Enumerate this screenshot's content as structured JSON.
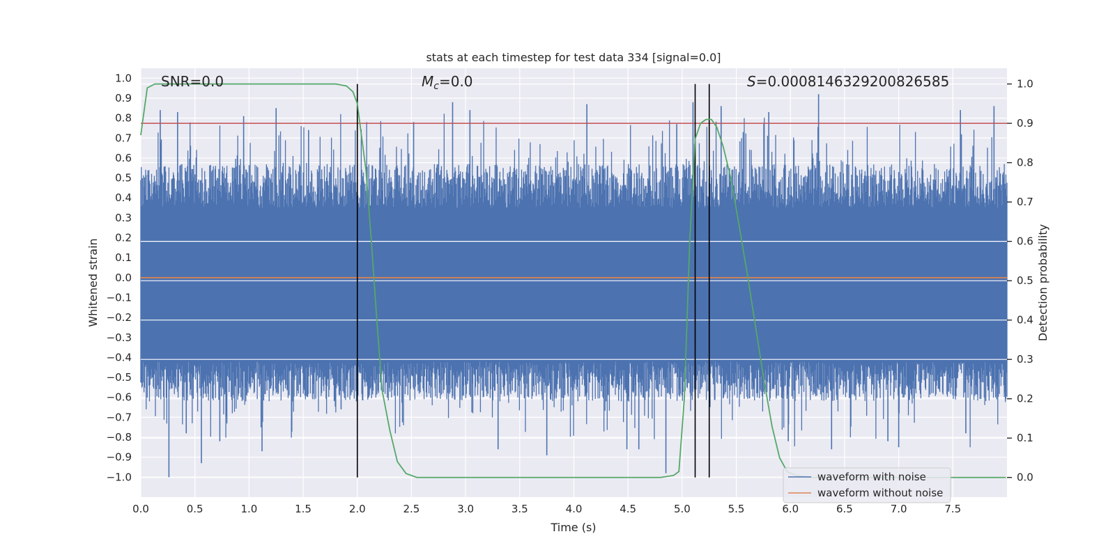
{
  "chart_data": {
    "type": "line",
    "title": "stats at each timestep for test data 334 [signal=0.0]",
    "xlabel": "Time (s)",
    "ylabel": "Whitened strain",
    "y2label": "Detection probability",
    "xlim": [
      0.0,
      8.0
    ],
    "ylim": [
      -1.1,
      1.05
    ],
    "y2lim": [
      -0.05,
      1.04
    ],
    "xticks": [
      "0.0",
      "0.5",
      "1.0",
      "1.5",
      "2.0",
      "2.5",
      "3.0",
      "3.5",
      "4.0",
      "4.5",
      "5.0",
      "5.5",
      "6.0",
      "6.5",
      "7.0",
      "7.5"
    ],
    "xtick_values": [
      0.0,
      0.5,
      1.0,
      1.5,
      2.0,
      2.5,
      3.0,
      3.5,
      4.0,
      4.5,
      5.0,
      5.5,
      6.0,
      6.5,
      7.0,
      7.5
    ],
    "yticks": [
      "1.0",
      "0.9",
      "0.8",
      "0.7",
      "0.6",
      "0.5",
      "0.4",
      "0.3",
      "0.2",
      "0.1",
      "0.0",
      "−0.1",
      "−0.2",
      "−0.3",
      "−0.4",
      "−0.5",
      "−0.6",
      "−0.7",
      "−0.8",
      "−0.9",
      "−1.0"
    ],
    "ytick_values": [
      1.0,
      0.9,
      0.8,
      0.7,
      0.6,
      0.5,
      0.4,
      0.3,
      0.2,
      0.1,
      0.0,
      -0.1,
      -0.2,
      -0.3,
      -0.4,
      -0.5,
      -0.6,
      -0.7,
      -0.8,
      -0.9,
      -1.0
    ],
    "y2ticks": [
      "1.0",
      "0.9",
      "0.8",
      "0.7",
      "0.6",
      "0.5",
      "0.4",
      "0.3",
      "0.2",
      "0.1",
      "0.0"
    ],
    "y2tick_values": [
      1.0,
      0.9,
      0.8,
      0.7,
      0.6,
      0.5,
      0.4,
      0.3,
      0.2,
      0.1,
      0.0
    ],
    "annotations": {
      "snr": "SNR=0.0",
      "mc_symbol": "M",
      "mc_sub": "c",
      "mc_value": "=0.0",
      "s_symbol": "S",
      "s_value": "=0.0008146329200826585"
    },
    "legend": {
      "placement": "bottom-right",
      "entries": [
        {
          "label": "waveform with noise",
          "color": "#4c72b0"
        },
        {
          "label": "waveform without noise",
          "color": "#dd8452"
        }
      ]
    },
    "noise_series": {
      "name": "waveform with noise",
      "color": "#4c72b0",
      "t_start": 0.0,
      "t_end": 8.0,
      "band_upper": 0.35,
      "band_lower": -0.42,
      "spikes": [
        {
          "t": 0.26,
          "v": -1.0
        },
        {
          "t": 0.56,
          "v": -0.93
        },
        {
          "t": 0.73,
          "v": -0.82
        },
        {
          "t": 0.95,
          "v": 0.81
        },
        {
          "t": 1.12,
          "v": -0.87
        },
        {
          "t": 1.25,
          "v": 0.85
        },
        {
          "t": 2.88,
          "v": 0.88
        },
        {
          "t": 3.04,
          "v": 0.84
        },
        {
          "t": 3.75,
          "v": -0.89
        },
        {
          "t": 4.12,
          "v": 0.87
        },
        {
          "t": 4.85,
          "v": -0.98
        },
        {
          "t": 5.1,
          "v": 0.88
        },
        {
          "t": 6.26,
          "v": 0.92
        },
        {
          "t": 7.57,
          "v": 0.84
        },
        {
          "t": 7.88,
          "v": 0.86
        },
        {
          "t": 7.0,
          "v": -0.85
        },
        {
          "t": 6.38,
          "v": -0.86
        },
        {
          "t": 5.98,
          "v": -0.82
        },
        {
          "t": 0.18,
          "v": 0.84
        },
        {
          "t": 0.34,
          "v": 0.83
        },
        {
          "t": 0.42,
          "v": -0.78
        },
        {
          "t": 1.55,
          "v": 0.74
        },
        {
          "t": 1.85,
          "v": -0.66
        },
        {
          "t": 2.52,
          "v": 0.78
        },
        {
          "t": 3.3,
          "v": -0.86
        },
        {
          "t": 4.49,
          "v": -0.86
        },
        {
          "t": 4.6,
          "v": -0.86
        },
        {
          "t": 5.36,
          "v": 0.86
        },
        {
          "t": 5.8,
          "v": 0.83
        },
        {
          "t": 6.9,
          "v": -0.82
        },
        {
          "t": 7.62,
          "v": -0.78
        },
        {
          "t": 4.95,
          "v": 0.77
        }
      ]
    },
    "clean_series": {
      "name": "waveform without noise",
      "color": "#dd8452",
      "value": 0.0
    },
    "threshold": {
      "value": 0.9,
      "axis": "y2",
      "color": "#c44e52"
    },
    "vlines": [
      2.0,
      5.12,
      5.25
    ],
    "probability_series": {
      "color": "#55a868",
      "points": [
        [
          0.0,
          0.87
        ],
        [
          0.06,
          0.99
        ],
        [
          0.13,
          1.0
        ],
        [
          0.5,
          1.0
        ],
        [
          1.0,
          1.0
        ],
        [
          1.5,
          1.0
        ],
        [
          1.8,
          1.0
        ],
        [
          1.9,
          0.995
        ],
        [
          1.96,
          0.98
        ],
        [
          2.0,
          0.95
        ],
        [
          2.08,
          0.78
        ],
        [
          2.13,
          0.6
        ],
        [
          2.18,
          0.4
        ],
        [
          2.23,
          0.22
        ],
        [
          2.3,
          0.12
        ],
        [
          2.37,
          0.04
        ],
        [
          2.45,
          0.01
        ],
        [
          2.55,
          0.0
        ],
        [
          3.0,
          0.0
        ],
        [
          3.5,
          0.0
        ],
        [
          4.0,
          0.0
        ],
        [
          4.5,
          0.0
        ],
        [
          4.8,
          0.0
        ],
        [
          4.92,
          0.005
        ],
        [
          4.97,
          0.015
        ],
        [
          5.02,
          0.2
        ],
        [
          5.07,
          0.6
        ],
        [
          5.12,
          0.86
        ],
        [
          5.17,
          0.9
        ],
        [
          5.22,
          0.91
        ],
        [
          5.27,
          0.91
        ],
        [
          5.32,
          0.89
        ],
        [
          5.38,
          0.84
        ],
        [
          5.45,
          0.76
        ],
        [
          5.52,
          0.65
        ],
        [
          5.6,
          0.52
        ],
        [
          5.68,
          0.38
        ],
        [
          5.76,
          0.24
        ],
        [
          5.83,
          0.13
        ],
        [
          5.9,
          0.05
        ],
        [
          5.97,
          0.015
        ],
        [
          6.05,
          0.005
        ],
        [
          6.2,
          0.0
        ],
        [
          7.0,
          0.0
        ],
        [
          7.99,
          0.0
        ]
      ]
    }
  }
}
